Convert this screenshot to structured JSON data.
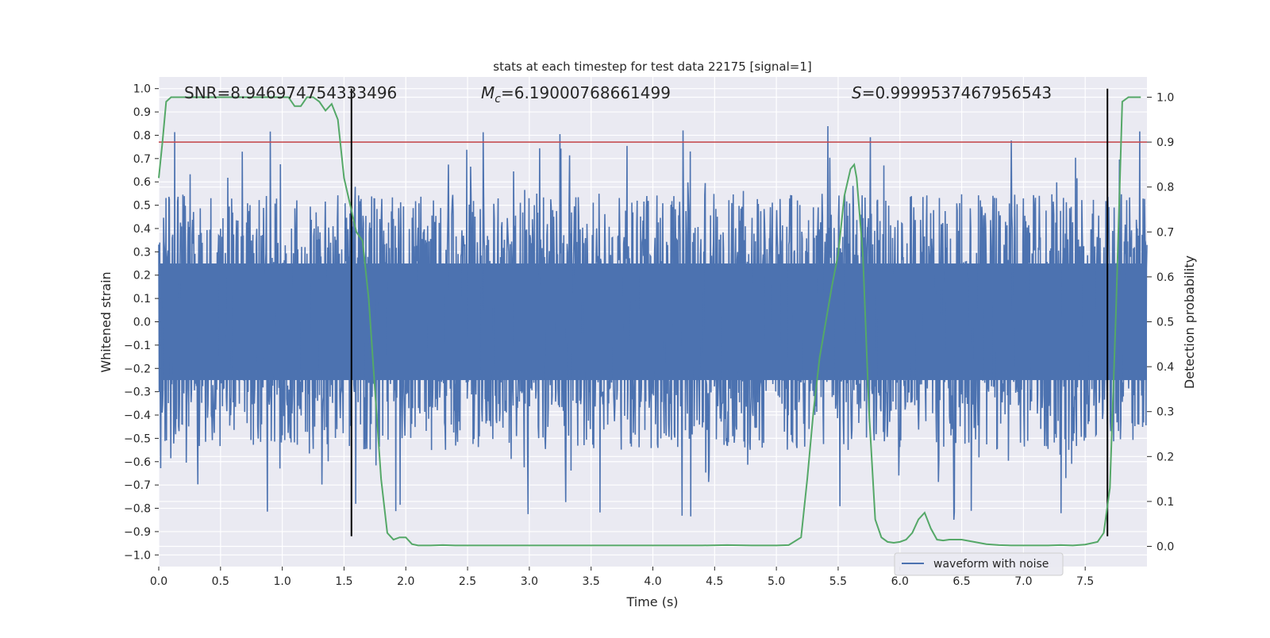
{
  "chart_data": {
    "type": "line",
    "title": "stats at each timestep for test data 22175 [signal=1]",
    "xlabel": "Time (s)",
    "ylabel": "Whitened strain",
    "y2label": "Detection probability",
    "xlim": [
      0.0,
      8.0
    ],
    "ylim": [
      -1.05,
      1.05
    ],
    "y2lim": [
      -0.045,
      1.045
    ],
    "x_ticks": [
      0.0,
      0.5,
      1.0,
      1.5,
      2.0,
      2.5,
      3.0,
      3.5,
      4.0,
      4.5,
      5.0,
      5.5,
      6.0,
      6.5,
      7.0,
      7.5
    ],
    "x_tick_labels": [
      "0.0",
      "0.5",
      "1.0",
      "1.5",
      "2.0",
      "2.5",
      "3.0",
      "3.5",
      "4.0",
      "4.5",
      "5.0",
      "5.5",
      "6.0",
      "6.5",
      "7.0",
      "7.5"
    ],
    "y_ticks": [
      1.0,
      0.9,
      0.8,
      0.7,
      0.6,
      0.5,
      0.4,
      0.3,
      0.2,
      0.1,
      0.0,
      -0.1,
      -0.2,
      -0.3,
      -0.4,
      -0.5,
      -0.6,
      -0.7,
      -0.8,
      -0.9,
      -1.0
    ],
    "y_tick_labels": [
      "1.0",
      "0.9",
      "0.8",
      "0.7",
      "0.6",
      "0.5",
      "0.4",
      "0.3",
      "0.2",
      "0.1",
      "0.0",
      "−0.1",
      "−0.2",
      "−0.3",
      "−0.4",
      "−0.5",
      "−0.6",
      "−0.7",
      "−0.8",
      "−0.9",
      "−1.0"
    ],
    "y2_ticks": [
      1.0,
      0.9,
      0.8,
      0.7,
      0.6,
      0.5,
      0.4,
      0.3,
      0.2,
      0.1,
      0.0
    ],
    "y2_tick_labels": [
      "1.0",
      "0.9",
      "0.8",
      "0.7",
      "0.6",
      "0.5",
      "0.4",
      "0.3",
      "0.2",
      "0.1",
      "0.0"
    ],
    "annotations": {
      "snr": "SNR=8.946974754333496",
      "mc_symbol": "M",
      "mc_sub": "c",
      "mc_value": "=6.19000768661499",
      "s_symbol": "S",
      "s_value": "=0.9999537467956543"
    },
    "threshold": 0.9,
    "vlines": [
      {
        "x": 1.56,
        "y_top": 1.0,
        "y_bottom": -0.92
      },
      {
        "x": 7.68,
        "y_top": 1.0,
        "y_bottom": -0.92
      }
    ],
    "series": [
      {
        "name": "waveform with noise",
        "color": "#4c72b0",
        "axis": "left",
        "sample_count": 2048,
        "envelope": {
          "core": 0.25,
          "typical": 0.45,
          "max": 1.0,
          "min": -0.92
        }
      },
      {
        "color": "#55a868",
        "axis": "right",
        "x": [
          0.0,
          0.03,
          0.06,
          0.1,
          0.2,
          0.3,
          0.4,
          0.5,
          0.6,
          0.7,
          0.8,
          0.9,
          1.0,
          1.05,
          1.1,
          1.15,
          1.2,
          1.25,
          1.3,
          1.35,
          1.4,
          1.45,
          1.5,
          1.55,
          1.6,
          1.65,
          1.7,
          1.75,
          1.8,
          1.85,
          1.9,
          1.95,
          2.0,
          2.05,
          2.1,
          2.15,
          2.2,
          2.3,
          2.4,
          2.5,
          2.6,
          2.8,
          3.0,
          3.2,
          3.4,
          3.6,
          3.8,
          4.0,
          4.2,
          4.4,
          4.6,
          4.8,
          5.0,
          5.1,
          5.2,
          5.25,
          5.3,
          5.35,
          5.4,
          5.45,
          5.5,
          5.55,
          5.6,
          5.63,
          5.65,
          5.7,
          5.75,
          5.8,
          5.85,
          5.9,
          5.95,
          6.0,
          6.05,
          6.1,
          6.15,
          6.2,
          6.25,
          6.3,
          6.35,
          6.4,
          6.5,
          6.6,
          6.7,
          6.8,
          6.9,
          7.0,
          7.1,
          7.2,
          7.3,
          7.4,
          7.5,
          7.6,
          7.65,
          7.7,
          7.75,
          7.8,
          7.85,
          7.9,
          7.95
        ],
        "values": [
          0.82,
          0.9,
          0.99,
          1.0,
          1.0,
          1.0,
          1.0,
          1.0,
          1.0,
          1.0,
          1.0,
          1.0,
          1.0,
          1.0,
          0.98,
          0.98,
          1.0,
          1.0,
          0.99,
          0.97,
          0.985,
          0.95,
          0.82,
          0.76,
          0.7,
          0.68,
          0.55,
          0.35,
          0.15,
          0.03,
          0.015,
          0.02,
          0.02,
          0.005,
          0.002,
          0.002,
          0.002,
          0.003,
          0.002,
          0.002,
          0.002,
          0.002,
          0.002,
          0.002,
          0.002,
          0.002,
          0.002,
          0.002,
          0.002,
          0.002,
          0.003,
          0.002,
          0.002,
          0.003,
          0.02,
          0.15,
          0.3,
          0.42,
          0.5,
          0.58,
          0.65,
          0.78,
          0.84,
          0.85,
          0.82,
          0.65,
          0.3,
          0.06,
          0.02,
          0.01,
          0.008,
          0.01,
          0.015,
          0.03,
          0.06,
          0.075,
          0.04,
          0.015,
          0.013,
          0.015,
          0.015,
          0.01,
          0.005,
          0.003,
          0.002,
          0.002,
          0.002,
          0.002,
          0.003,
          0.002,
          0.004,
          0.01,
          0.03,
          0.13,
          0.53,
          0.99,
          1.0,
          1.0,
          1.0
        ]
      }
    ],
    "threshold_color": "#c44e52",
    "vline_color": "#000000",
    "grid": true,
    "legend": {
      "placement": "lower-right",
      "entries": [
        "waveform with noise"
      ]
    }
  }
}
